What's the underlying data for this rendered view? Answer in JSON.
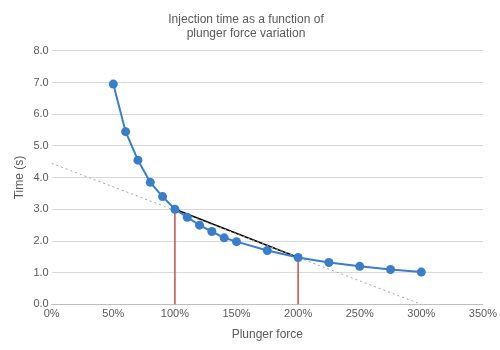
{
  "chart_data": {
    "type": "line",
    "title": [
      "Injection time as a function of",
      "plunger force variation"
    ],
    "x_label": "Plunger force",
    "y_label": "Time (s)",
    "x": [
      50,
      60,
      70,
      80,
      90,
      100,
      110,
      120,
      130,
      140,
      150,
      175,
      200,
      225,
      250,
      275,
      300
    ],
    "values": [
      6.95,
      5.45,
      4.55,
      3.85,
      3.4,
      3.0,
      2.75,
      2.5,
      2.3,
      2.1,
      1.98,
      1.7,
      1.48,
      1.32,
      1.2,
      1.1,
      1.02
    ],
    "color": "#3a7dc9",
    "marker": "circle",
    "line_style": "solid",
    "lines": [
      {
        "x": [
          0,
          300
        ],
        "values": [
          4.45,
          0
        ],
        "color": "#a6a6a6",
        "line_style": "dotted",
        "marker": "none"
      },
      {
        "x": [
          100,
          200
        ],
        "values": [
          3.0,
          1.48
        ],
        "color": "#000000",
        "line_style": "solid",
        "marker": "none"
      },
      {
        "x": [
          100,
          100
        ],
        "values": [
          0,
          3.0
        ],
        "color": "#c0504d",
        "line_style": "solid",
        "marker": "none"
      },
      {
        "x": [
          200,
          200
        ],
        "values": [
          0,
          1.48
        ],
        "color": "#c0504d",
        "line_style": "solid",
        "marker": "none"
      }
    ],
    "xlim": [
      0,
      350
    ],
    "xticks": [
      {
        "value": 0,
        "label": "0%"
      },
      {
        "value": 50,
        "label": "50%"
      },
      {
        "value": 100,
        "label": "100%"
      },
      {
        "value": 150,
        "label": "150%"
      },
      {
        "value": 200,
        "label": "200%"
      },
      {
        "value": 250,
        "label": "250%"
      },
      {
        "value": 300,
        "label": "300%"
      },
      {
        "value": 350,
        "label": "350%"
      }
    ],
    "ylim": [
      0,
      8
    ],
    "yticks": [
      {
        "value": 0,
        "label": "0.0"
      },
      {
        "value": 1,
        "label": "1.0"
      },
      {
        "value": 2,
        "label": "2.0"
      },
      {
        "value": 3,
        "label": "3.0"
      },
      {
        "value": 4,
        "label": "4.0"
      },
      {
        "value": 5,
        "label": "5.0"
      },
      {
        "value": 6,
        "label": "6.0"
      },
      {
        "value": 7,
        "label": "7.0"
      },
      {
        "value": 8,
        "label": "8.0"
      }
    ],
    "grid": "y"
  }
}
